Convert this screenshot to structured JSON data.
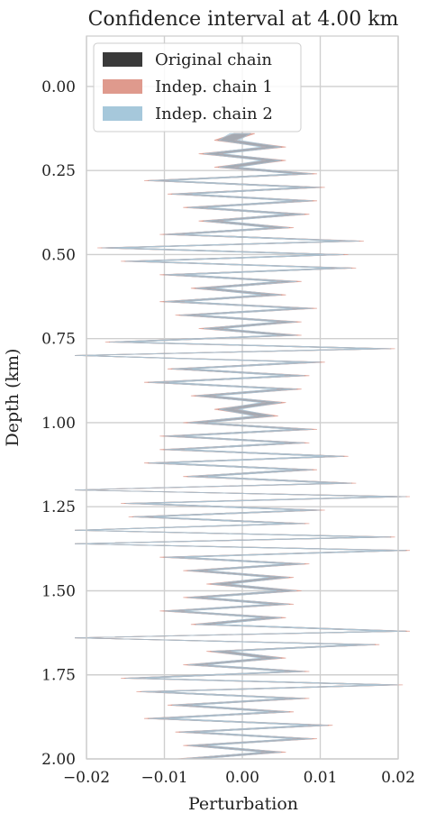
{
  "chart_data": {
    "type": "area",
    "title": "Confidence interval at 4.00 km",
    "xlabel": "Perturbation",
    "ylabel": "Depth (km)",
    "xlim": [
      -0.02,
      0.02
    ],
    "ylim": [
      2.0,
      -0.15
    ],
    "y_inverted": true,
    "grid": true,
    "legend_position": "top-left",
    "x_ticks": [
      "−0.02",
      "−0.01",
      "0.00",
      "0.01",
      "0.02"
    ],
    "x_tick_values": [
      -0.02,
      -0.01,
      0.0,
      0.01,
      0.02
    ],
    "y_ticks": [
      "0.00",
      "0.25",
      "0.50",
      "0.75",
      "1.00",
      "1.25",
      "1.50",
      "1.75",
      "2.00"
    ],
    "y_tick_values": [
      0.0,
      0.25,
      0.5,
      0.75,
      1.0,
      1.25,
      1.5,
      1.75,
      2.0
    ],
    "depth": [
      0.14,
      0.16,
      0.18,
      0.2,
      0.22,
      0.24,
      0.26,
      0.28,
      0.3,
      0.32,
      0.34,
      0.36,
      0.38,
      0.4,
      0.42,
      0.44,
      0.46,
      0.48,
      0.5,
      0.52,
      0.54,
      0.56,
      0.58,
      0.6,
      0.62,
      0.64,
      0.66,
      0.68,
      0.7,
      0.72,
      0.74,
      0.76,
      0.78,
      0.8,
      0.82,
      0.84,
      0.86,
      0.88,
      0.9,
      0.92,
      0.94,
      0.96,
      0.98,
      1.0,
      1.02,
      1.04,
      1.06,
      1.08,
      1.1,
      1.12,
      1.14,
      1.16,
      1.18,
      1.2,
      1.22,
      1.24,
      1.26,
      1.28,
      1.3,
      1.32,
      1.34,
      1.36,
      1.38,
      1.4,
      1.42,
      1.44,
      1.46,
      1.48,
      1.5,
      1.52,
      1.54,
      1.56,
      1.58,
      1.6,
      1.62,
      1.64,
      1.66,
      1.68,
      1.7,
      1.72,
      1.74,
      1.76,
      1.78,
      1.8,
      1.82,
      1.84,
      1.86,
      1.88,
      1.9,
      1.92,
      1.94,
      1.96,
      1.98,
      2.0
    ],
    "center": [
      0.0,
      -0.002,
      0.004,
      -0.004,
      0.004,
      -0.002,
      0.008,
      -0.011,
      0.009,
      -0.008,
      0.008,
      -0.006,
      0.007,
      -0.004,
      0.005,
      -0.009,
      0.014,
      -0.017,
      0.012,
      -0.014,
      0.013,
      -0.009,
      0.006,
      -0.005,
      0.004,
      -0.009,
      0.008,
      -0.007,
      0.006,
      -0.004,
      0.006,
      -0.016,
      0.018,
      -0.022,
      0.009,
      -0.008,
      0.007,
      -0.011,
      0.006,
      -0.005,
      0.004,
      -0.002,
      0.003,
      -0.006,
      0.008,
      -0.009,
      0.007,
      -0.009,
      0.012,
      -0.011,
      0.008,
      -0.006,
      0.013,
      -0.025,
      0.02,
      -0.014,
      0.009,
      -0.013,
      0.007,
      -0.022,
      0.018,
      -0.022,
      0.02,
      -0.009,
      0.007,
      -0.006,
      0.005,
      -0.003,
      0.006,
      -0.006,
      0.005,
      -0.009,
      0.004,
      -0.005,
      0.02,
      -0.026,
      0.016,
      -0.003,
      0.004,
      -0.006,
      0.007,
      -0.014,
      0.019,
      -0.012,
      0.007,
      -0.008,
      0.005,
      -0.011,
      0.01,
      -0.007,
      0.008,
      -0.006,
      0.004,
      -0.007
    ],
    "series": [
      {
        "name": "Original chain",
        "color": "#3a3a3a",
        "halfwidth": 0.0011,
        "offset": 0.0
      },
      {
        "name": "Indep. chain 1",
        "color": "#df9a8d",
        "halfwidth": 0.0013,
        "offset": -0.0003
      },
      {
        "name": "Indep. chain 2",
        "color": "#a6c8db",
        "halfwidth": 0.0013,
        "offset": 0.0003
      }
    ]
  }
}
